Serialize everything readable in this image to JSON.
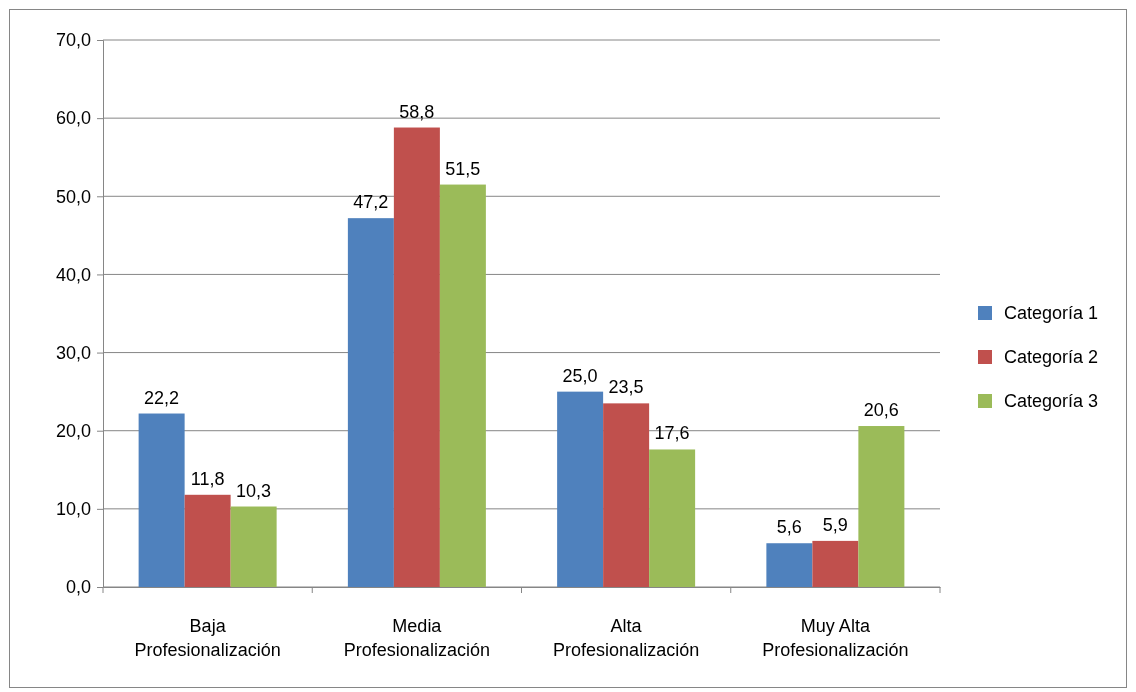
{
  "chart_data": {
    "type": "bar",
    "categories": [
      "Baja Profesionalización",
      "Media Profesionalización",
      "Alta Profesionalización",
      "Muy Alta Profesionalización"
    ],
    "series": [
      {
        "name": "Categoría 1",
        "color": "#4f81bd",
        "values": [
          22.2,
          47.2,
          25.0,
          5.6
        ],
        "value_labels": [
          "22,2",
          "47,2",
          "25,0",
          "5,6"
        ]
      },
      {
        "name": "Categoría 2",
        "color": "#c0504d",
        "values": [
          11.8,
          58.8,
          23.5,
          5.9
        ],
        "value_labels": [
          "11,8",
          "58,8",
          "23,5",
          "5,9"
        ]
      },
      {
        "name": "Categoría 3",
        "color": "#9bbb59",
        "values": [
          10.3,
          51.5,
          17.6,
          20.6
        ],
        "value_labels": [
          "10,3",
          "51,5",
          "17,6",
          "20,6"
        ]
      }
    ],
    "ylim": [
      0,
      70
    ],
    "yticks": [
      {
        "value": 0,
        "label": "0,0"
      },
      {
        "value": 10,
        "label": "10,0"
      },
      {
        "value": 20,
        "label": "20,0"
      },
      {
        "value": 30,
        "label": "30,0"
      },
      {
        "value": 40,
        "label": "40,0"
      },
      {
        "value": 50,
        "label": "50,0"
      },
      {
        "value": 60,
        "label": "60,0"
      },
      {
        "value": 70,
        "label": "70,0"
      }
    ],
    "grid": "y",
    "legend": "right"
  }
}
